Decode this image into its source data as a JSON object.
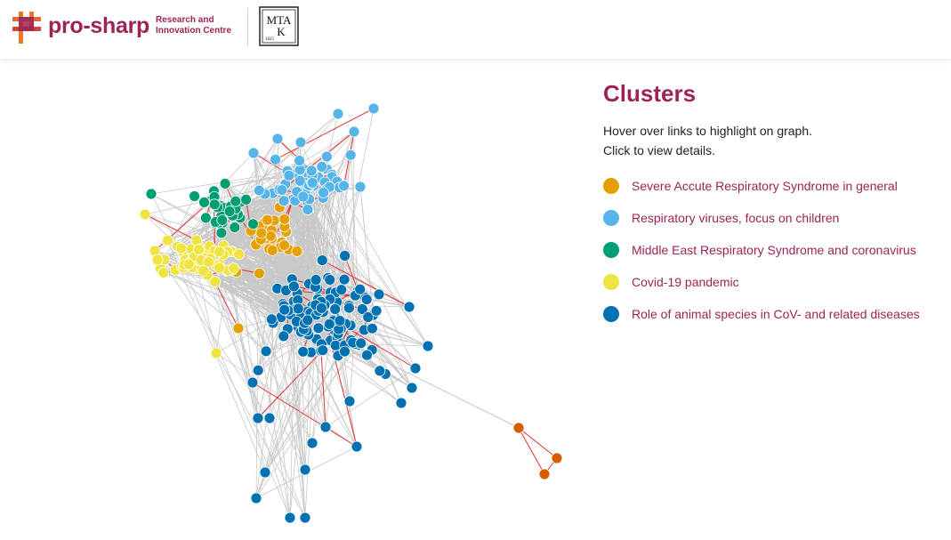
{
  "header": {
    "brand": "pro-sharp",
    "brand_subtitle_1": "Research and",
    "brand_subtitle_2": "Innovation Centre",
    "partner_logo": {
      "top_letters": "MTA",
      "letter_k": "K",
      "year": "1825"
    }
  },
  "panel": {
    "title": "Clusters",
    "instruction_1": "Hover over links to highlight on graph.",
    "instruction_2": "Click to view details."
  },
  "clusters": [
    {
      "label": "Severe Accute Respiratory Syndrome in general",
      "color": "#e69f00"
    },
    {
      "label": "Respiratory viruses, focus on children",
      "color": "#56b4e9"
    },
    {
      "label": "Middle East Respiratory Syndrome and coronavirus",
      "color": "#009e73"
    },
    {
      "label": "Covid-19 pandemic",
      "color": "#f0e442"
    },
    {
      "label": "Role of animal species in CoV- and related diseases",
      "color": "#0072b2"
    }
  ],
  "outlier_color": "#d55e00",
  "link_color": "#c8c8c8",
  "highlight_link_color": "#e0302e"
}
